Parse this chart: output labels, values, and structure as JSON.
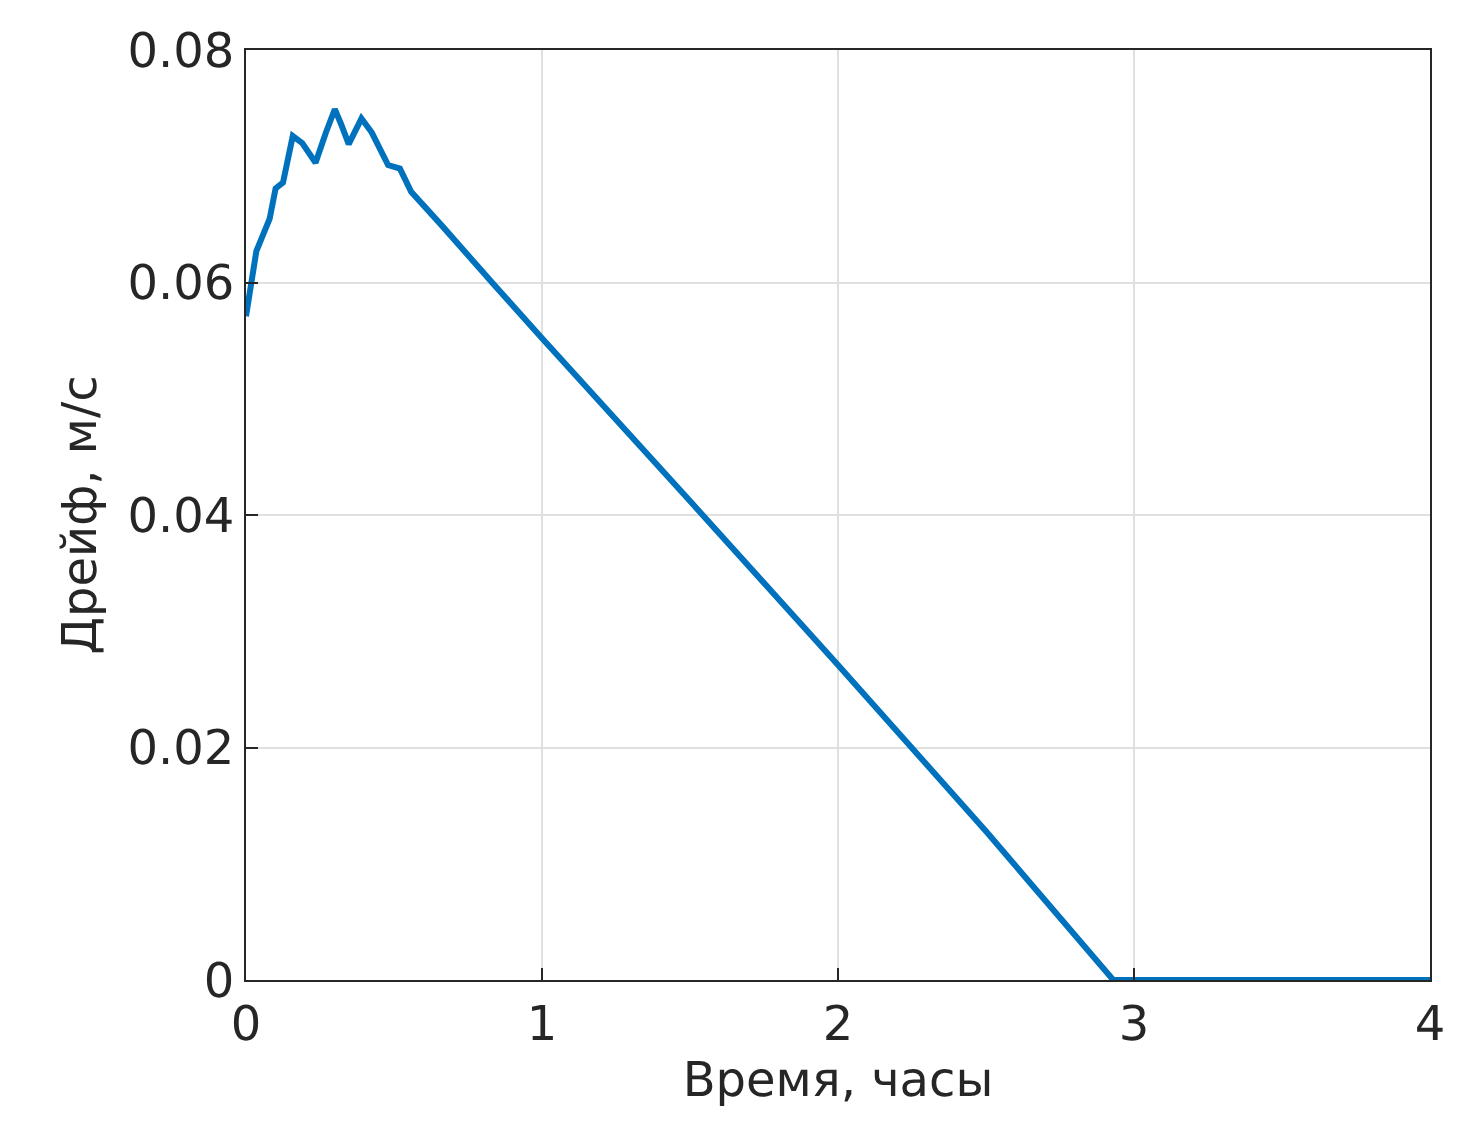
{
  "chart_data": {
    "type": "line",
    "xlabel": "Время, часы",
    "ylabel": "Дрейф, м/с",
    "x": [
      0,
      0.035,
      0.08,
      0.1,
      0.125,
      0.158,
      0.19,
      0.235,
      0.27,
      0.3,
      0.32,
      0.347,
      0.39,
      0.425,
      0.48,
      0.52,
      0.558,
      0.658,
      0.835,
      1,
      1.5,
      2,
      2.5,
      2.93,
      3,
      3.5,
      3.8,
      4
    ],
    "series": [
      {
        "color": "#0072bd",
        "values": [
          0.0571,
          0.0627,
          0.0655,
          0.0681,
          0.0686,
          0.0726,
          0.072,
          0.0703,
          0.0729,
          0.0749,
          0.0737,
          0.0719,
          0.0741,
          0.0729,
          0.0701,
          0.0698,
          0.0678,
          0.065,
          0.0599,
          0.0552,
          0.0412,
          0.0271,
          0.0128,
          0,
          0,
          0,
          0,
          0
        ]
      }
    ],
    "xlim": [
      0,
      4
    ],
    "ylim": [
      0,
      0.08
    ],
    "xticks": [
      0,
      1,
      2,
      3,
      4
    ],
    "yticks": [
      0,
      0.02,
      0.04,
      0.06,
      0.08
    ],
    "grid": true,
    "line_style": "solid",
    "marker": "none"
  }
}
